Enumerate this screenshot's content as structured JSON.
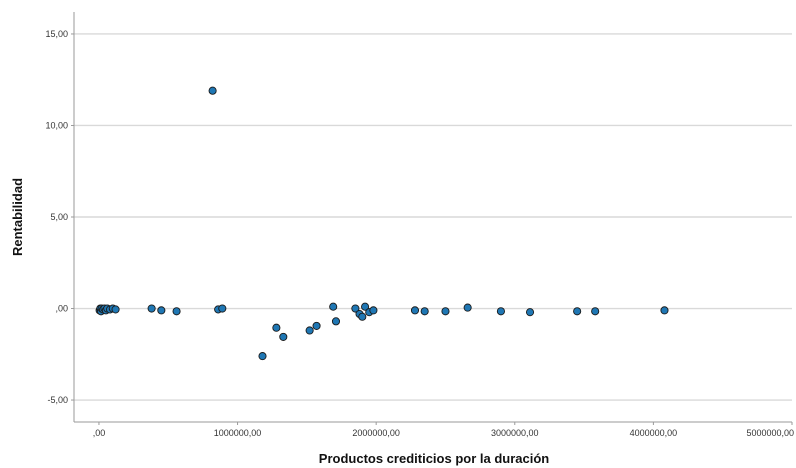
{
  "chart_data": {
    "type": "scatter",
    "title": "",
    "xlabel": "Productos crediticios por la duración",
    "ylabel": "Rentabilidad",
    "xlim": [
      -180000,
      5000000
    ],
    "ylim": [
      -6.2,
      16.2
    ],
    "grid": "horizontal",
    "x_ticks": [
      {
        "value": 0,
        "label": ",00"
      },
      {
        "value": 1000000,
        "label": "1000000,00"
      },
      {
        "value": 2000000,
        "label": "2000000,00"
      },
      {
        "value": 3000000,
        "label": "3000000,00"
      },
      {
        "value": 4000000,
        "label": "4000000,00"
      },
      {
        "value": 5000000,
        "label": "5000000,00"
      }
    ],
    "y_ticks": [
      {
        "value": 15,
        "label": "15,00"
      },
      {
        "value": 10,
        "label": "10,00"
      },
      {
        "value": 5,
        "label": "5,00"
      },
      {
        "value": 0,
        "label": ",00"
      },
      {
        "value": -5,
        "label": "-5,00"
      }
    ],
    "marker_color": "#1f77b4",
    "marker_edge": "#1a1a1a",
    "gridline_color": "#d9d9d9",
    "series": [
      {
        "x": [
          5000,
          10000,
          15000,
          20000,
          30000,
          40000,
          50000,
          60000,
          80000,
          100000,
          120000,
          380000,
          450000,
          560000,
          820000,
          860000,
          890000,
          1180000,
          1280000,
          1330000,
          1520000,
          1570000,
          1690000,
          1710000,
          1850000,
          1880000,
          1900000,
          1920000,
          1950000,
          1980000,
          2280000,
          2350000,
          2500000,
          2660000,
          2900000,
          3110000,
          3450000,
          3580000,
          4080000
        ],
        "y": [
          -0.1,
          0.0,
          -0.15,
          0.0,
          -0.05,
          0.0,
          -0.1,
          0.0,
          -0.05,
          0.0,
          -0.05,
          0.0,
          -0.1,
          -0.15,
          11.9,
          -0.05,
          0.0,
          -2.6,
          -1.05,
          -1.55,
          -1.2,
          -0.95,
          0.1,
          -0.7,
          0.0,
          -0.3,
          -0.45,
          0.1,
          -0.2,
          -0.1,
          -0.1,
          -0.15,
          -0.15,
          0.05,
          -0.15,
          -0.2,
          -0.15,
          -0.15,
          -0.1
        ]
      }
    ]
  }
}
